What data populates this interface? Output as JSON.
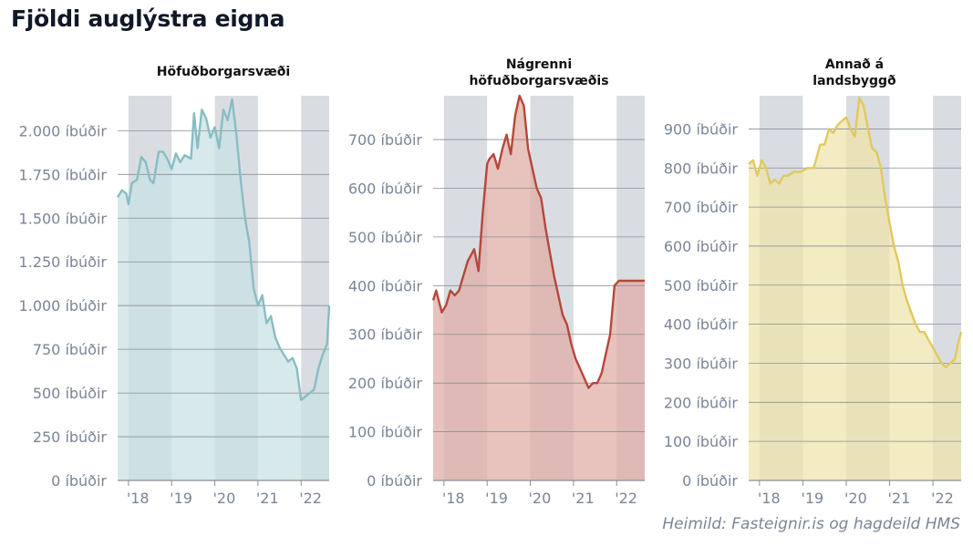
{
  "title": "Fjöldi auglýstra eigna",
  "source": "Heimild: Fasteignir.is og hagdeild HMS",
  "colors": {
    "band": "#d9dde2",
    "grid": "#8a8f96",
    "panel1_line": "#88bdc4",
    "panel1_fill": "#c7e0e3",
    "panel2_line": "#b5473a",
    "panel2_fill": "#dfaaa4",
    "panel3_line": "#e1c95c",
    "panel3_fill": "#efe3a9"
  },
  "chart_data": [
    {
      "type": "area",
      "title_lines": [
        "Höfuðborgarsvæði"
      ],
      "x_ticks": [
        "'18",
        "'19",
        "'20",
        "'21",
        "'22"
      ],
      "xlim": [
        2017.75,
        2022.65
      ],
      "ylim": [
        0,
        2200
      ],
      "y_ticks": [
        0,
        250,
        500,
        750,
        1000,
        1250,
        1500,
        1750,
        2000
      ],
      "y_tick_labels": [
        "0 íbúðir",
        "250 íbúðir",
        "500 íbúðir",
        "750 íbúðir",
        "1.000 íbúðir",
        "1.250 íbúðir",
        "1.500 íbúðir",
        "1.750 íbúðir",
        "2.000 íbúðir"
      ],
      "shaded_years": [
        [
          2018,
          2019
        ],
        [
          2020,
          2021
        ],
        [
          2022,
          2022.65
        ]
      ],
      "series": [
        {
          "x": [
            2017.75,
            2017.85,
            2017.95,
            2018.0,
            2018.08,
            2018.2,
            2018.3,
            2018.4,
            2018.5,
            2018.58,
            2018.7,
            2018.8,
            2018.9,
            2019.0,
            2019.1,
            2019.2,
            2019.3,
            2019.45,
            2019.52,
            2019.6,
            2019.7,
            2019.8,
            2019.9,
            2020.0,
            2020.1,
            2020.2,
            2020.3,
            2020.4,
            2020.5,
            2020.6,
            2020.7,
            2020.8,
            2020.9,
            2021.0,
            2021.1,
            2021.2,
            2021.3,
            2021.4,
            2021.5,
            2021.6,
            2021.7,
            2021.8,
            2021.9,
            2022.0,
            2022.1,
            2022.2,
            2022.3,
            2022.4,
            2022.5,
            2022.6,
            2022.65
          ],
          "y": [
            1620,
            1660,
            1640,
            1580,
            1700,
            1720,
            1850,
            1820,
            1720,
            1700,
            1880,
            1880,
            1840,
            1780,
            1870,
            1820,
            1860,
            1840,
            2100,
            1900,
            2120,
            2070,
            1960,
            2020,
            1900,
            2120,
            2060,
            2180,
            1980,
            1720,
            1500,
            1360,
            1100,
            1000,
            1060,
            900,
            940,
            820,
            760,
            720,
            680,
            700,
            640,
            460,
            480,
            500,
            520,
            640,
            720,
            780,
            1000
          ]
        }
      ]
    },
    {
      "type": "area",
      "title_lines": [
        "Nágrenni",
        "höfuðborgarsvæðis"
      ],
      "x_ticks": [
        "'18",
        "'19",
        "'20",
        "'21",
        "'22"
      ],
      "xlim": [
        2017.75,
        2022.65
      ],
      "ylim": [
        0,
        790
      ],
      "y_ticks": [
        0,
        100,
        200,
        300,
        400,
        500,
        600,
        700
      ],
      "y_tick_labels": [
        "0 íbúðir",
        "100 íbúðir",
        "200 íbúðir",
        "300 íbúðir",
        "400 íbúðir",
        "500 íbúðir",
        "600 íbúðir",
        "700 íbúðir"
      ],
      "shaded_years": [
        [
          2018,
          2019
        ],
        [
          2020,
          2021
        ],
        [
          2022,
          2022.65
        ]
      ],
      "series": [
        {
          "x": [
            2017.75,
            2017.82,
            2017.95,
            2018.05,
            2018.15,
            2018.25,
            2018.35,
            2018.45,
            2018.55,
            2018.7,
            2018.8,
            2018.9,
            2019.0,
            2019.05,
            2019.15,
            2019.25,
            2019.35,
            2019.45,
            2019.55,
            2019.65,
            2019.75,
            2019.85,
            2019.95,
            2020.05,
            2020.15,
            2020.25,
            2020.35,
            2020.45,
            2020.55,
            2020.65,
            2020.75,
            2020.85,
            2020.95,
            2021.05,
            2021.15,
            2021.25,
            2021.35,
            2021.45,
            2021.55,
            2021.65,
            2021.75,
            2021.85,
            2021.95,
            2022.05,
            2022.15,
            2022.25,
            2022.35,
            2022.45,
            2022.55,
            2022.65
          ],
          "y": [
            370,
            390,
            345,
            360,
            390,
            380,
            390,
            420,
            450,
            475,
            430,
            550,
            650,
            660,
            670,
            640,
            680,
            710,
            670,
            750,
            790,
            770,
            680,
            640,
            600,
            580,
            520,
            470,
            420,
            380,
            340,
            320,
            280,
            250,
            230,
            210,
            190,
            200,
            200,
            220,
            260,
            300,
            400,
            410,
            410,
            410,
            410,
            410,
            410,
            410
          ]
        }
      ]
    },
    {
      "type": "area",
      "title_lines": [
        "Annað á",
        "landsbyggð"
      ],
      "x_ticks": [
        "'18",
        "'19",
        "'20",
        "'21",
        "'22"
      ],
      "xlim": [
        2017.75,
        2022.65
      ],
      "ylim": [
        0,
        985
      ],
      "y_ticks": [
        0,
        100,
        200,
        300,
        400,
        500,
        600,
        700,
        800,
        900
      ],
      "y_tick_labels": [
        "0 íbúðir",
        "100 íbúðir",
        "200 íbúðir",
        "300 íbúðir",
        "400 íbúðir",
        "500 íbúðir",
        "600 íbúðir",
        "700 íbúðir",
        "800 íbúðir",
        "900 íbúðir"
      ],
      "shaded_years": [
        [
          2018,
          2019
        ],
        [
          2020,
          2021
        ],
        [
          2022,
          2022.65
        ]
      ],
      "series": [
        {
          "x": [
            2017.75,
            2017.85,
            2017.95,
            2018.05,
            2018.15,
            2018.25,
            2018.35,
            2018.45,
            2018.55,
            2018.65,
            2018.8,
            2018.95,
            2019.1,
            2019.25,
            2019.4,
            2019.5,
            2019.6,
            2019.7,
            2019.8,
            2019.9,
            2020.0,
            2020.1,
            2020.2,
            2020.3,
            2020.4,
            2020.5,
            2020.6,
            2020.7,
            2020.8,
            2020.9,
            2021.0,
            2021.1,
            2021.2,
            2021.3,
            2021.4,
            2021.5,
            2021.6,
            2021.7,
            2021.8,
            2021.9,
            2022.0,
            2022.1,
            2022.2,
            2022.3,
            2022.4,
            2022.5,
            2022.6,
            2022.65
          ],
          "y": [
            810,
            820,
            780,
            820,
            800,
            760,
            770,
            760,
            780,
            780,
            790,
            790,
            800,
            800,
            860,
            860,
            900,
            890,
            910,
            920,
            930,
            900,
            880,
            980,
            960,
            900,
            850,
            840,
            800,
            720,
            660,
            600,
            560,
            500,
            460,
            430,
            400,
            380,
            380,
            360,
            340,
            320,
            300,
            290,
            300,
            310,
            360,
            380
          ]
        }
      ]
    }
  ]
}
